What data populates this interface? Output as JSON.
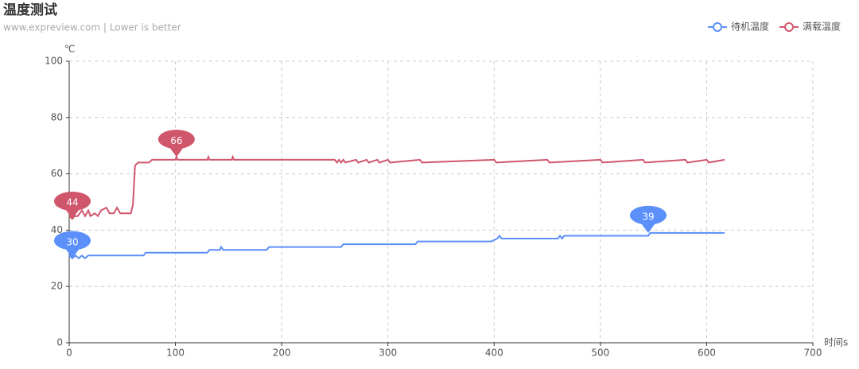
{
  "chart_data": {
    "type": "line",
    "title": "温度测试",
    "subtitle": "www.expreview.com  | Lower is better",
    "y_label": "℃",
    "x_label": "时间s",
    "xlim": [
      0,
      700
    ],
    "xticks": [
      0,
      100,
      200,
      300,
      400,
      500,
      600,
      700
    ],
    "ylim": [
      0,
      100
    ],
    "yticks": [
      0,
      20,
      40,
      60,
      80,
      100
    ],
    "grid": true,
    "legend": "top-right",
    "series": [
      {
        "name": "待机温度",
        "color": "#5b8ff9",
        "x": [
          0,
          3,
          6,
          9,
          12,
          15,
          18,
          20,
          70,
          72,
          130,
          132,
          142,
          143,
          145,
          186,
          188,
          190,
          256,
          258,
          260,
          326,
          328,
          330,
          395,
          397,
          403,
          405,
          407,
          460,
          462,
          464,
          466,
          468,
          545,
          547,
          617
        ],
        "values": [
          31,
          30,
          31,
          30,
          31,
          30,
          31,
          31,
          31,
          32,
          32,
          33,
          33,
          34,
          33,
          33,
          34,
          34,
          34,
          35,
          35,
          35,
          36,
          36,
          36,
          36,
          37,
          38,
          37,
          37,
          38,
          37,
          38,
          38,
          38,
          39,
          39
        ],
        "mark_points": [
          {
            "x": 3,
            "y": 30
          },
          {
            "x": 545,
            "y": 39
          }
        ]
      },
      {
        "name": "满载温度",
        "color": "#d0566c",
        "x": [
          0,
          3,
          5,
          8,
          12,
          15,
          18,
          20,
          24,
          27,
          30,
          35,
          38,
          42,
          45,
          48,
          52,
          58,
          60,
          62,
          65,
          75,
          78,
          80,
          100,
          101,
          102,
          130,
          131,
          132,
          153,
          154,
          155,
          250,
          252,
          254,
          256,
          258,
          260,
          270,
          272,
          280,
          282,
          290,
          292,
          300,
          302,
          330,
          332,
          400,
          402,
          450,
          452,
          500,
          502,
          540,
          542,
          580,
          582,
          600,
          602,
          617
        ],
        "values": [
          45,
          44,
          45,
          45,
          47,
          45,
          47,
          45,
          46,
          45,
          47,
          48,
          46,
          46,
          48,
          46,
          46,
          46,
          49,
          63,
          64,
          64,
          65,
          65,
          65,
          66,
          65,
          65,
          66,
          65,
          65,
          66,
          65,
          65,
          64,
          65,
          64,
          65,
          64,
          65,
          64,
          65,
          64,
          65,
          64,
          65,
          64,
          65,
          64,
          65,
          64,
          65,
          64,
          65,
          64,
          65,
          64,
          65,
          64,
          65,
          64,
          65
        ],
        "mark_points": [
          {
            "x": 101,
            "y": 66
          },
          {
            "x": 3,
            "y": 44
          }
        ]
      }
    ]
  }
}
